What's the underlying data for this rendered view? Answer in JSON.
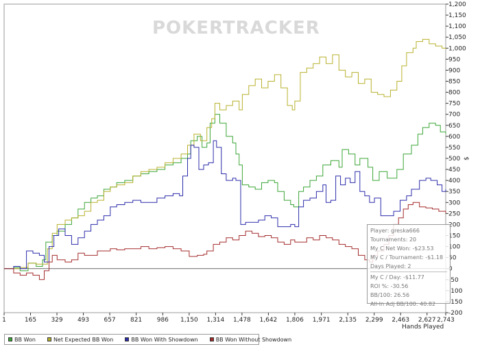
{
  "watermark": "POKERTRACKER",
  "chart_data": {
    "type": "line",
    "title": "",
    "xlabel": "Hands Played",
    "ylabel": "$",
    "xlim": [
      1,
      2743
    ],
    "ylim": [
      -200,
      1200
    ],
    "x_ticks": [
      1,
      165,
      329,
      493,
      657,
      821,
      986,
      1150,
      1314,
      1478,
      1642,
      1806,
      1971,
      2135,
      2299,
      2463,
      2627,
      2743
    ],
    "x_tick_labels": [
      "1",
      "165",
      "329",
      "493",
      "657",
      "821",
      "986",
      "1,150",
      "1,314",
      "1,478",
      "1,642",
      "1,806",
      "1,971",
      "2,135",
      "2,299",
      "2,463",
      "2,627",
      "2,743"
    ],
    "y_ticks": [
      -200,
      -150,
      -100,
      -50,
      0,
      50,
      100,
      150,
      200,
      250,
      300,
      350,
      400,
      450,
      500,
      550,
      600,
      650,
      700,
      750,
      800,
      850,
      900,
      950,
      1000,
      1050,
      1100,
      1150,
      1200
    ],
    "y_tick_labels": [
      "-200",
      "-150",
      "-100",
      "-50",
      "0",
      "50",
      "100",
      "150",
      "200",
      "250",
      "300",
      "350",
      "400",
      "450",
      "500",
      "550",
      "600",
      "650",
      "700",
      "750",
      "800",
      "850",
      "900",
      "950",
      "1,000",
      "1,050",
      "1,100",
      "1,150",
      "1,200"
    ],
    "series": [
      {
        "name": "BB Won",
        "color": "#3aa535",
        "points": [
          [
            1,
            0
          ],
          [
            60,
            5
          ],
          [
            100,
            -10
          ],
          [
            150,
            25
          ],
          [
            200,
            10
          ],
          [
            240,
            40
          ],
          [
            260,
            120
          ],
          [
            300,
            150
          ],
          [
            330,
            170
          ],
          [
            380,
            200
          ],
          [
            420,
            230
          ],
          [
            460,
            270
          ],
          [
            500,
            300
          ],
          [
            540,
            320
          ],
          [
            580,
            330
          ],
          [
            620,
            360
          ],
          [
            660,
            370
          ],
          [
            700,
            390
          ],
          [
            750,
            400
          ],
          [
            800,
            420
          ],
          [
            850,
            430
          ],
          [
            900,
            440
          ],
          [
            950,
            450
          ],
          [
            1000,
            470
          ],
          [
            1050,
            480
          ],
          [
            1100,
            500
          ],
          [
            1140,
            520
          ],
          [
            1160,
            580
          ],
          [
            1200,
            600
          ],
          [
            1230,
            550
          ],
          [
            1260,
            570
          ],
          [
            1280,
            660
          ],
          [
            1310,
            700
          ],
          [
            1340,
            660
          ],
          [
            1380,
            600
          ],
          [
            1420,
            570
          ],
          [
            1440,
            520
          ],
          [
            1460,
            470
          ],
          [
            1480,
            380
          ],
          [
            1520,
            370
          ],
          [
            1560,
            360
          ],
          [
            1600,
            390
          ],
          [
            1640,
            400
          ],
          [
            1680,
            390
          ],
          [
            1700,
            350
          ],
          [
            1740,
            310
          ],
          [
            1780,
            290
          ],
          [
            1800,
            280
          ],
          [
            1806,
            280
          ],
          [
            1830,
            350
          ],
          [
            1860,
            370
          ],
          [
            1900,
            400
          ],
          [
            1940,
            420
          ],
          [
            1980,
            470
          ],
          [
            2030,
            490
          ],
          [
            2080,
            460
          ],
          [
            2100,
            540
          ],
          [
            2140,
            520
          ],
          [
            2180,
            470
          ],
          [
            2210,
            500
          ],
          [
            2260,
            460
          ],
          [
            2290,
            400
          ],
          [
            2330,
            440
          ],
          [
            2380,
            410
          ],
          [
            2440,
            450
          ],
          [
            2480,
            520
          ],
          [
            2530,
            560
          ],
          [
            2570,
            610
          ],
          [
            2600,
            640
          ],
          [
            2640,
            660
          ],
          [
            2680,
            650
          ],
          [
            2710,
            620
          ],
          [
            2743,
            610
          ]
        ]
      },
      {
        "name": "Net Expected BB Won",
        "color": "#b7b02c",
        "points": [
          [
            1,
            0
          ],
          [
            60,
            0
          ],
          [
            100,
            5
          ],
          [
            150,
            25
          ],
          [
            200,
            20
          ],
          [
            240,
            20
          ],
          [
            270,
            90
          ],
          [
            300,
            160
          ],
          [
            330,
            200
          ],
          [
            380,
            220
          ],
          [
            420,
            230
          ],
          [
            460,
            240
          ],
          [
            500,
            260
          ],
          [
            540,
            300
          ],
          [
            580,
            310
          ],
          [
            620,
            350
          ],
          [
            660,
            370
          ],
          [
            700,
            380
          ],
          [
            750,
            390
          ],
          [
            800,
            420
          ],
          [
            850,
            440
          ],
          [
            900,
            450
          ],
          [
            950,
            460
          ],
          [
            1000,
            480
          ],
          [
            1050,
            500
          ],
          [
            1100,
            520
          ],
          [
            1140,
            560
          ],
          [
            1180,
            610
          ],
          [
            1220,
            580
          ],
          [
            1260,
            640
          ],
          [
            1290,
            680
          ],
          [
            1310,
            750
          ],
          [
            1340,
            720
          ],
          [
            1380,
            740
          ],
          [
            1420,
            760
          ],
          [
            1460,
            720
          ],
          [
            1480,
            790
          ],
          [
            1520,
            830
          ],
          [
            1560,
            860
          ],
          [
            1600,
            820
          ],
          [
            1640,
            850
          ],
          [
            1680,
            880
          ],
          [
            1720,
            820
          ],
          [
            1760,
            740
          ],
          [
            1790,
            720
          ],
          [
            1806,
            760
          ],
          [
            1840,
            890
          ],
          [
            1880,
            910
          ],
          [
            1920,
            930
          ],
          [
            1960,
            960
          ],
          [
            2000,
            930
          ],
          [
            2040,
            970
          ],
          [
            2080,
            900
          ],
          [
            2120,
            870
          ],
          [
            2160,
            890
          ],
          [
            2200,
            840
          ],
          [
            2240,
            860
          ],
          [
            2280,
            800
          ],
          [
            2320,
            790
          ],
          [
            2360,
            780
          ],
          [
            2400,
            810
          ],
          [
            2440,
            850
          ],
          [
            2470,
            920
          ],
          [
            2500,
            980
          ],
          [
            2540,
            1000
          ],
          [
            2560,
            1030
          ],
          [
            2600,
            1040
          ],
          [
            2640,
            1020
          ],
          [
            2680,
            1010
          ],
          [
            2720,
            1000
          ],
          [
            2743,
            995
          ]
        ]
      },
      {
        "name": "BB Won With Showdown",
        "color": "#2b2bab",
        "points": [
          [
            1,
            0
          ],
          [
            60,
            10
          ],
          [
            100,
            0
          ],
          [
            140,
            80
          ],
          [
            180,
            70
          ],
          [
            220,
            60
          ],
          [
            250,
            30
          ],
          [
            280,
            100
          ],
          [
            310,
            150
          ],
          [
            340,
            180
          ],
          [
            380,
            150
          ],
          [
            420,
            110
          ],
          [
            460,
            140
          ],
          [
            500,
            170
          ],
          [
            540,
            200
          ],
          [
            580,
            220
          ],
          [
            620,
            240
          ],
          [
            660,
            280
          ],
          [
            700,
            290
          ],
          [
            750,
            300
          ],
          [
            800,
            310
          ],
          [
            850,
            300
          ],
          [
            900,
            300
          ],
          [
            950,
            320
          ],
          [
            1000,
            330
          ],
          [
            1050,
            340
          ],
          [
            1090,
            330
          ],
          [
            1110,
            420
          ],
          [
            1140,
            500
          ],
          [
            1160,
            560
          ],
          [
            1180,
            550
          ],
          [
            1210,
            450
          ],
          [
            1240,
            470
          ],
          [
            1270,
            480
          ],
          [
            1300,
            580
          ],
          [
            1320,
            550
          ],
          [
            1350,
            430
          ],
          [
            1380,
            400
          ],
          [
            1420,
            410
          ],
          [
            1440,
            400
          ],
          [
            1470,
            200
          ],
          [
            1500,
            210
          ],
          [
            1540,
            210
          ],
          [
            1580,
            220
          ],
          [
            1620,
            240
          ],
          [
            1660,
            230
          ],
          [
            1700,
            190
          ],
          [
            1740,
            190
          ],
          [
            1780,
            200
          ],
          [
            1806,
            190
          ],
          [
            1830,
            280
          ],
          [
            1860,
            310
          ],
          [
            1900,
            320
          ],
          [
            1940,
            350
          ],
          [
            1980,
            380
          ],
          [
            2000,
            300
          ],
          [
            2030,
            310
          ],
          [
            2060,
            420
          ],
          [
            2090,
            380
          ],
          [
            2120,
            410
          ],
          [
            2150,
            390
          ],
          [
            2180,
            440
          ],
          [
            2210,
            350
          ],
          [
            2240,
            330
          ],
          [
            2270,
            300
          ],
          [
            2300,
            320
          ],
          [
            2340,
            240
          ],
          [
            2380,
            240
          ],
          [
            2420,
            260
          ],
          [
            2460,
            310
          ],
          [
            2500,
            330
          ],
          [
            2530,
            360
          ],
          [
            2580,
            400
          ],
          [
            2620,
            410
          ],
          [
            2650,
            400
          ],
          [
            2690,
            380
          ],
          [
            2720,
            350
          ],
          [
            2743,
            360
          ]
        ]
      },
      {
        "name": "BB Won Without Showdown",
        "color": "#a32a2a",
        "points": [
          [
            1,
            0
          ],
          [
            60,
            -20
          ],
          [
            100,
            -30
          ],
          [
            140,
            -20
          ],
          [
            180,
            -30
          ],
          [
            220,
            -50
          ],
          [
            250,
            -10
          ],
          [
            280,
            30
          ],
          [
            300,
            60
          ],
          [
            330,
            40
          ],
          [
            380,
            30
          ],
          [
            420,
            40
          ],
          [
            460,
            70
          ],
          [
            500,
            60
          ],
          [
            540,
            60
          ],
          [
            580,
            80
          ],
          [
            620,
            80
          ],
          [
            660,
            90
          ],
          [
            700,
            85
          ],
          [
            750,
            90
          ],
          [
            800,
            90
          ],
          [
            850,
            100
          ],
          [
            900,
            90
          ],
          [
            950,
            95
          ],
          [
            1000,
            100
          ],
          [
            1050,
            90
          ],
          [
            1100,
            80
          ],
          [
            1150,
            55
          ],
          [
            1200,
            60
          ],
          [
            1240,
            65
          ],
          [
            1260,
            80
          ],
          [
            1300,
            110
          ],
          [
            1340,
            120
          ],
          [
            1380,
            140
          ],
          [
            1420,
            130
          ],
          [
            1460,
            150
          ],
          [
            1500,
            170
          ],
          [
            1540,
            160
          ],
          [
            1580,
            145
          ],
          [
            1620,
            150
          ],
          [
            1660,
            140
          ],
          [
            1700,
            120
          ],
          [
            1740,
            110
          ],
          [
            1780,
            130
          ],
          [
            1806,
            120
          ],
          [
            1840,
            120
          ],
          [
            1880,
            140
          ],
          [
            1920,
            130
          ],
          [
            1960,
            150
          ],
          [
            2000,
            140
          ],
          [
            2040,
            130
          ],
          [
            2080,
            110
          ],
          [
            2120,
            100
          ],
          [
            2160,
            90
          ],
          [
            2200,
            60
          ],
          [
            2240,
            40
          ],
          [
            2270,
            30
          ],
          [
            2290,
            60
          ],
          [
            2320,
            80
          ],
          [
            2360,
            110
          ],
          [
            2390,
            150
          ],
          [
            2420,
            200
          ],
          [
            2450,
            230
          ],
          [
            2480,
            270
          ],
          [
            2510,
            290
          ],
          [
            2540,
            300
          ],
          [
            2580,
            280
          ],
          [
            2620,
            275
          ],
          [
            2660,
            270
          ],
          [
            2700,
            260
          ],
          [
            2743,
            250
          ]
        ]
      }
    ]
  },
  "stats": {
    "player": "Player: greska666",
    "tournaments": "Tournaments: 20",
    "net_won": "My C Net Won: -$23.53",
    "per_tournament": "My C / Tournament: -$1.18",
    "days_played": "Days Played: 2",
    "per_day": "My C / Day: -$11.77",
    "roi": "ROI %: -30.56",
    "bb100": "BB/100: 26.56",
    "allin_bb100": "All-In Adj BB/100: 40.82"
  }
}
